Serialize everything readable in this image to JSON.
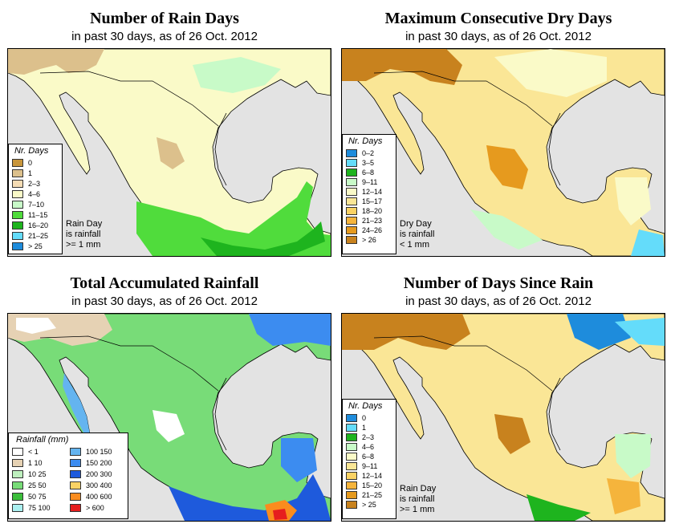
{
  "panels": [
    {
      "title": "Number of Rain Days",
      "subtitle": "in past 30 days, as of  26 Oct. 2012",
      "legend_title": "Nr. Days",
      "legend": [
        {
          "label": "0",
          "color": "#c8963c"
        },
        {
          "label": "1",
          "color": "#dcc08c"
        },
        {
          "label": "2–3",
          "color": "#f5dcb4"
        },
        {
          "label": "4–6",
          "color": "#fafac8"
        },
        {
          "label": "7–10",
          "color": "#c8fac8"
        },
        {
          "label": "11–15",
          "color": "#50dc3c"
        },
        {
          "label": "16–20",
          "color": "#1eb41e"
        },
        {
          "label": "21–25",
          "color": "#64dcfa"
        },
        {
          "label": "> 25",
          "color": "#1e8cdc"
        }
      ],
      "note": [
        "Rain Day",
        "is rainfall",
        ">= 1 mm"
      ]
    },
    {
      "title": "Maximum Consecutive Dry Days",
      "subtitle": "in past 30 days, as of  26 Oct. 2012",
      "legend_title": "Nr. Days",
      "legend": [
        {
          "label": "0–2",
          "color": "#1e8cdc"
        },
        {
          "label": "3–5",
          "color": "#64dcfa"
        },
        {
          "label": "6–8",
          "color": "#1eb41e"
        },
        {
          "label": "9–11",
          "color": "#c8fac8"
        },
        {
          "label": "12–14",
          "color": "#fafac8"
        },
        {
          "label": "15–17",
          "color": "#fae696"
        },
        {
          "label": "18–20",
          "color": "#fad264"
        },
        {
          "label": "21–23",
          "color": "#f5b43c"
        },
        {
          "label": "24–26",
          "color": "#e69a1e"
        },
        {
          "label": "> 26",
          "color": "#c8821e"
        }
      ],
      "note": [
        "Dry Day",
        "is rainfall",
        "< 1 mm"
      ]
    },
    {
      "title": "Total Accumulated Rainfall",
      "subtitle": "in past 30 days, as of  26 Oct. 2012",
      "legend_title": "Rainfall (mm)",
      "legend": [
        {
          "label": "< 1",
          "color": "#ffffff"
        },
        {
          "label": "1    10",
          "color": "#e6d2b4"
        },
        {
          "label": "10    25",
          "color": "#bef0be"
        },
        {
          "label": "25    50",
          "color": "#78dc78"
        },
        {
          "label": "50    75",
          "color": "#3cbe3c"
        },
        {
          "label": "75   100",
          "color": "#aaf0f0"
        },
        {
          "label": "100   150",
          "color": "#64b4f0"
        },
        {
          "label": "150   200",
          "color": "#3c8cf0"
        },
        {
          "label": "200   300",
          "color": "#1e5adc"
        },
        {
          "label": "300   400",
          "color": "#fad264"
        },
        {
          "label": "400   600",
          "color": "#fa8c1e"
        },
        {
          "label": "> 600",
          "color": "#e61e1e"
        }
      ],
      "note": []
    },
    {
      "title": "Number of Days Since Rain",
      "subtitle": "in past 30 days, as of  26 Oct. 2012",
      "legend_title": "Nr. Days",
      "legend": [
        {
          "label": "0",
          "color": "#1e8cdc"
        },
        {
          "label": "1",
          "color": "#64dcfa"
        },
        {
          "label": "2–3",
          "color": "#1eb41e"
        },
        {
          "label": "4–6",
          "color": "#c8fac8"
        },
        {
          "label": "6–8",
          "color": "#fafac8"
        },
        {
          "label": "9–11",
          "color": "#fae696"
        },
        {
          "label": "12–14",
          "color": "#fad264"
        },
        {
          "label": "15–20",
          "color": "#f5b43c"
        },
        {
          "label": "21–25",
          "color": "#e69a1e"
        },
        {
          "label": "> 25",
          "color": "#c8821e"
        }
      ],
      "note": [
        "Rain Day",
        "is rainfall",
        ">= 1 mm"
      ]
    }
  ]
}
